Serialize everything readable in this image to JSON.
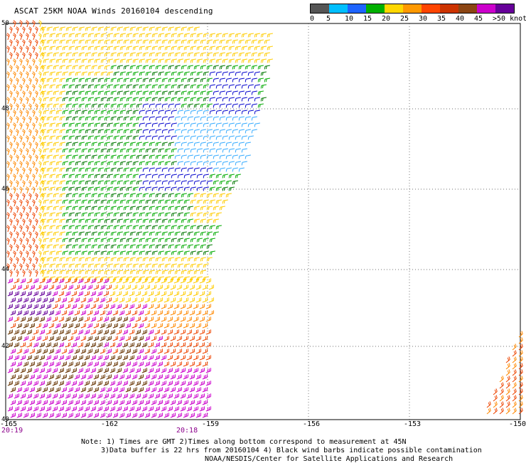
{
  "title": "ASCAT 25KM NOAA Winds 20160104 descending",
  "legend": {
    "labels": [
      "0",
      "5",
      "10",
      "15",
      "20",
      "25",
      "30",
      "35",
      "40",
      "45",
      ">50 knots"
    ],
    "colors": [
      "#555555",
      "#00bfff",
      "#1e64ff",
      "#00b000",
      "#ffd700",
      "#ff9900",
      "#ff4500",
      "#cc3300",
      "#8b4513",
      "#cc00cc",
      "#660099"
    ]
  },
  "axes": {
    "lon_labels": [
      "-165",
      "-162",
      "-159",
      "-156",
      "-153",
      "-150"
    ],
    "lat_labels": [
      "50",
      "48",
      "46",
      "44",
      "42",
      "40"
    ]
  },
  "times": [
    "20:19",
    "20:18"
  ],
  "notes": [
    "Note: 1) Times are GMT 2)Times along bottom correspond to measurement at 45N",
    "3)Data buffer is 22 hrs from 20160104 4) Black wind barbs indicate possible contamination",
    "NOAA/NESDIS/Center for Satellite Applications and Research"
  ],
  "colors": {
    "light_blue": "#33aaff",
    "blue": "#0000cc",
    "green": "#00aa00",
    "dark_green": "#007700",
    "yellow": "#ffcc00",
    "orange": "#ff8800",
    "red_orange": "#ee4400",
    "brown": "#663300",
    "magenta": "#cc00cc",
    "purple": "#660099"
  }
}
